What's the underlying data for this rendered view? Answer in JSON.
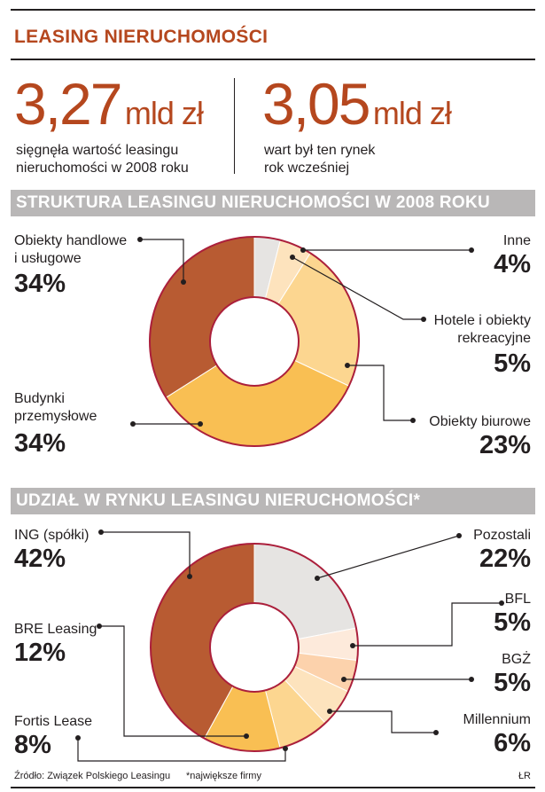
{
  "header": {
    "title": "LEASING NIERUCHOMOŚCI"
  },
  "stats": [
    {
      "value": "3,27",
      "unit": "mld zł",
      "caption_line1": "sięgnęła wartość leasingu",
      "caption_line2": "nieruchomości w 2008 roku"
    },
    {
      "value": "3,05",
      "unit": "mld zł",
      "caption_line1": "wart był ten rynek",
      "caption_line2": "rok wcześniej"
    }
  ],
  "chart_data": [
    {
      "type": "pie",
      "donut": true,
      "title": "STRUKTURA LEASINGU NIERUCHOMOŚCI W 2008 ROKU",
      "unit": "%",
      "slices": [
        {
          "label": "Inne",
          "value": 4,
          "display": "4%",
          "color": "#e6e4e2"
        },
        {
          "label": "Hotele i obiekty rekreacyjne",
          "label_line1": "Hotele i obiekty",
          "label_line2": "rekreacyjne",
          "value": 5,
          "display": "5%",
          "color": "#fde3bd"
        },
        {
          "label": "Obiekty biurowe",
          "value": 23,
          "display": "23%",
          "color": "#fcd690"
        },
        {
          "label": "Budynki przemysłowe",
          "label_line1": "Budynki",
          "label_line2": "przemysłowe",
          "value": 34,
          "display": "34%",
          "color": "#f9bf53"
        },
        {
          "label": "Obiekty handlowe i usługowe",
          "label_line1": "Obiekty handlowe",
          "label_line2": "i usługowe",
          "value": 34,
          "display": "34%",
          "color": "#b85b32"
        }
      ]
    },
    {
      "type": "pie",
      "donut": true,
      "title": "UDZIAŁ W RYNKU LEASINGU NIERUCHOMOŚCI*",
      "unit": "%",
      "slices": [
        {
          "label": "Pozostali",
          "value": 22,
          "display": "22%",
          "color": "#e6e4e2"
        },
        {
          "label": "BFL",
          "value": 5,
          "display": "5%",
          "color": "#fdeadb"
        },
        {
          "label": "BGŻ",
          "value": 5,
          "display": "5%",
          "color": "#fcd2ac"
        },
        {
          "label": "Millennium",
          "value": 6,
          "display": "6%",
          "color": "#fde3bd"
        },
        {
          "label": "Fortis Lease",
          "value": 8,
          "display": "8%",
          "color": "#fcd690"
        },
        {
          "label": "BRE Leasing",
          "value": 12,
          "display": "12%",
          "color": "#f9bf53"
        },
        {
          "label": "ING (spółki)",
          "value": 42,
          "display": "42%",
          "color": "#b85b32"
        }
      ]
    }
  ],
  "footer": {
    "source": "Źródło: Związek Polskiego Leasingu",
    "note": "*największe firmy",
    "credit": "ŁR"
  },
  "colors": {
    "accent": "#b5471e",
    "outline": "#ab1f3b",
    "band": "#b9b7b7"
  }
}
